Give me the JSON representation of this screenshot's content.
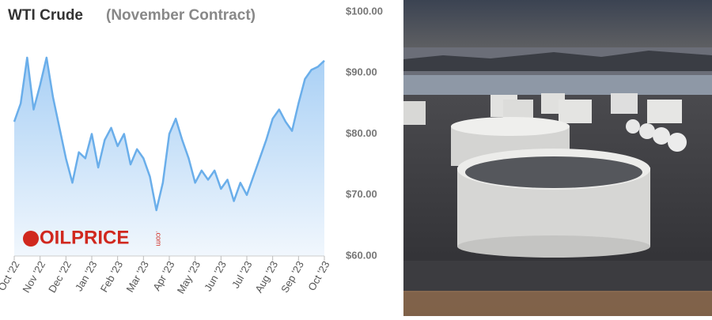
{
  "chart_data": {
    "type": "area-line",
    "title": "WTI Crude",
    "subtitle": "(November Contract)",
    "watermark": "OILPRICE",
    "watermark_suffix": ".com",
    "categories": [
      "Oct '22",
      null,
      null,
      null,
      "Nov '22",
      null,
      null,
      null,
      "Dec '22",
      null,
      null,
      null,
      "Jan '23",
      null,
      null,
      null,
      "Feb '23",
      null,
      null,
      null,
      "Mar '23",
      null,
      null,
      null,
      "Apr '23",
      null,
      null,
      null,
      "May '23",
      null,
      null,
      null,
      "Jun '23",
      null,
      null,
      null,
      "Jul '23",
      null,
      null,
      null,
      "Aug '23",
      null,
      null,
      null,
      "Sep '23",
      null,
      null,
      null,
      "Oct '23"
    ],
    "values": [
      82,
      85,
      92.5,
      84,
      88,
      92.5,
      86,
      81,
      76,
      72,
      77,
      76,
      80,
      74.5,
      79,
      81,
      78,
      80,
      75,
      77.5,
      76,
      73,
      67.5,
      72,
      80,
      82.5,
      79,
      76,
      72,
      74,
      72.5,
      74,
      71,
      72.5,
      69,
      72,
      70,
      73,
      76,
      79,
      82.5,
      84,
      82,
      80.5,
      85,
      89,
      90.5,
      91,
      92
    ],
    "color": "#6aaeea",
    "ylim": [
      60,
      100
    ],
    "yticks": [
      {
        "value": 60,
        "label": "$60.00"
      },
      {
        "value": 70,
        "label": "$70.00"
      },
      {
        "value": 80,
        "label": "$80.00"
      },
      {
        "value": 90,
        "label": "$90.00"
      },
      {
        "value": 100,
        "label": "$100.00"
      }
    ]
  }
}
